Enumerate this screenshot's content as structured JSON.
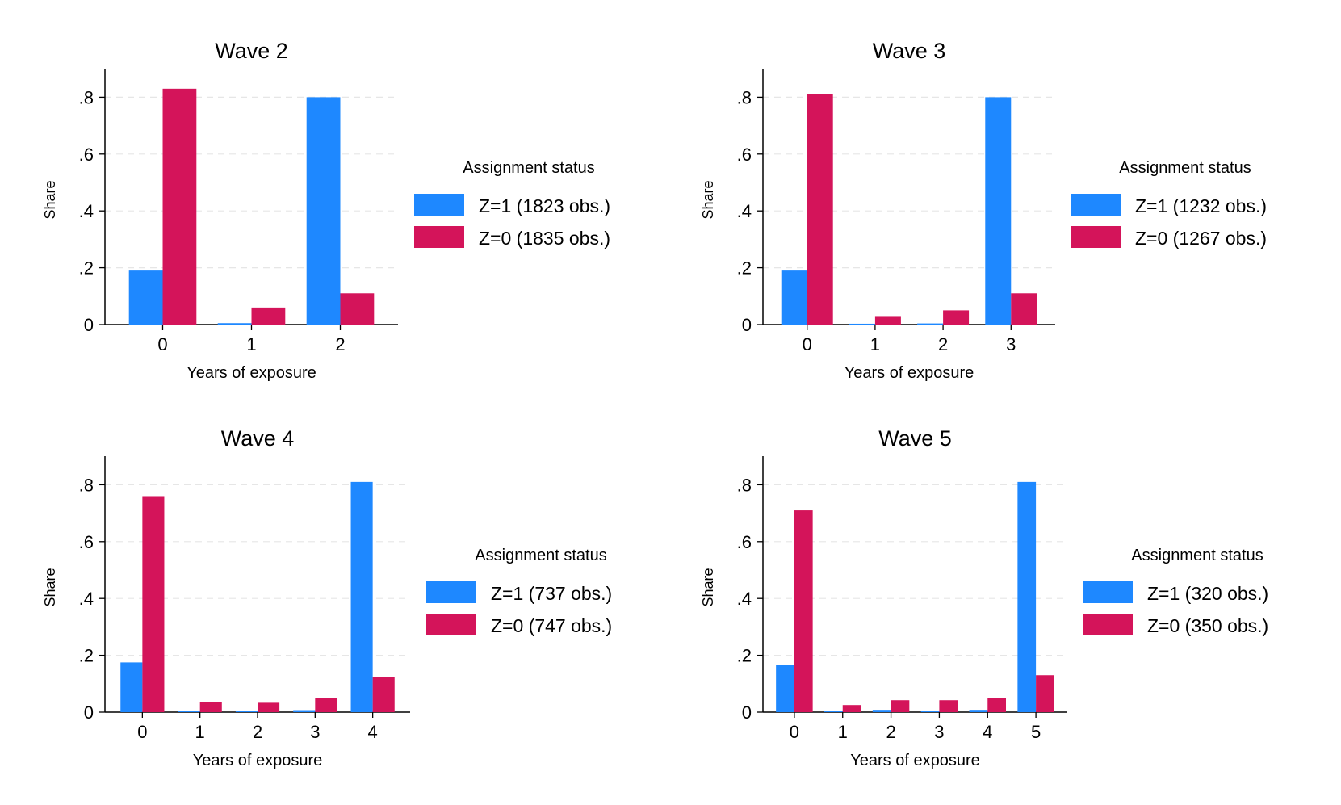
{
  "colors": {
    "z1": "#1E88FF",
    "z0": "#D4145A",
    "grid": "#e6e6e6",
    "axis": "#000000"
  },
  "chart_data": [
    {
      "type": "bar",
      "title": "Wave 2",
      "xlabel": "Years of exposure",
      "ylabel": "Share",
      "ylim": [
        0,
        0.9
      ],
      "yticks": [
        0,
        0.2,
        0.4,
        0.6,
        0.8
      ],
      "ytick_labels": [
        "0",
        ".2",
        ".4",
        ".6",
        ".8"
      ],
      "categories": [
        "0",
        "1",
        "2"
      ],
      "legend_title": "Assignment status",
      "series": [
        {
          "name": "Z=1 (1823 obs.)",
          "color": "#1E88FF",
          "values": [
            0.19,
            0.005,
            0.8
          ]
        },
        {
          "name": "Z=0 (1835 obs.)",
          "color": "#D4145A",
          "values": [
            0.83,
            0.06,
            0.11
          ]
        }
      ]
    },
    {
      "type": "bar",
      "title": "Wave 3",
      "xlabel": "Years of exposure",
      "ylabel": "Share",
      "ylim": [
        0,
        0.9
      ],
      "yticks": [
        0,
        0.2,
        0.4,
        0.6,
        0.8
      ],
      "ytick_labels": [
        "0",
        ".2",
        ".4",
        ".6",
        ".8"
      ],
      "categories": [
        "0",
        "1",
        "2",
        "3"
      ],
      "legend_title": "Assignment status",
      "series": [
        {
          "name": "Z=1 (1232 obs.)",
          "color": "#1E88FF",
          "values": [
            0.19,
            0.003,
            0.004,
            0.8
          ]
        },
        {
          "name": "Z=0 (1267 obs.)",
          "color": "#D4145A",
          "values": [
            0.81,
            0.03,
            0.05,
            0.11
          ]
        }
      ]
    },
    {
      "type": "bar",
      "title": "Wave 4",
      "xlabel": "Years of exposure",
      "ylabel": "Share",
      "ylim": [
        0,
        0.9
      ],
      "yticks": [
        0,
        0.2,
        0.4,
        0.6,
        0.8
      ],
      "ytick_labels": [
        "0",
        ".2",
        ".4",
        ".6",
        ".8"
      ],
      "categories": [
        "0",
        "1",
        "2",
        "3",
        "4"
      ],
      "legend_title": "Assignment status",
      "series": [
        {
          "name": "Z=1 (737 obs.)",
          "color": "#1E88FF",
          "values": [
            0.175,
            0.004,
            0.003,
            0.007,
            0.81
          ]
        },
        {
          "name": "Z=0 (747 obs.)",
          "color": "#D4145A",
          "values": [
            0.76,
            0.035,
            0.033,
            0.05,
            0.125
          ]
        }
      ]
    },
    {
      "type": "bar",
      "title": "Wave 5",
      "xlabel": "Years of exposure",
      "ylabel": "Share",
      "ylim": [
        0,
        0.9
      ],
      "yticks": [
        0,
        0.2,
        0.4,
        0.6,
        0.8
      ],
      "ytick_labels": [
        "0",
        ".2",
        ".4",
        ".6",
        ".8"
      ],
      "categories": [
        "0",
        "1",
        "2",
        "3",
        "4",
        "5"
      ],
      "legend_title": "Assignment status",
      "series": [
        {
          "name": "Z=1 (320 obs.)",
          "color": "#1E88FF",
          "values": [
            0.165,
            0.005,
            0.008,
            0.003,
            0.008,
            0.81
          ]
        },
        {
          "name": "Z=0 (350 obs.)",
          "color": "#D4145A",
          "values": [
            0.71,
            0.025,
            0.042,
            0.042,
            0.05,
            0.13
          ]
        }
      ]
    }
  ]
}
